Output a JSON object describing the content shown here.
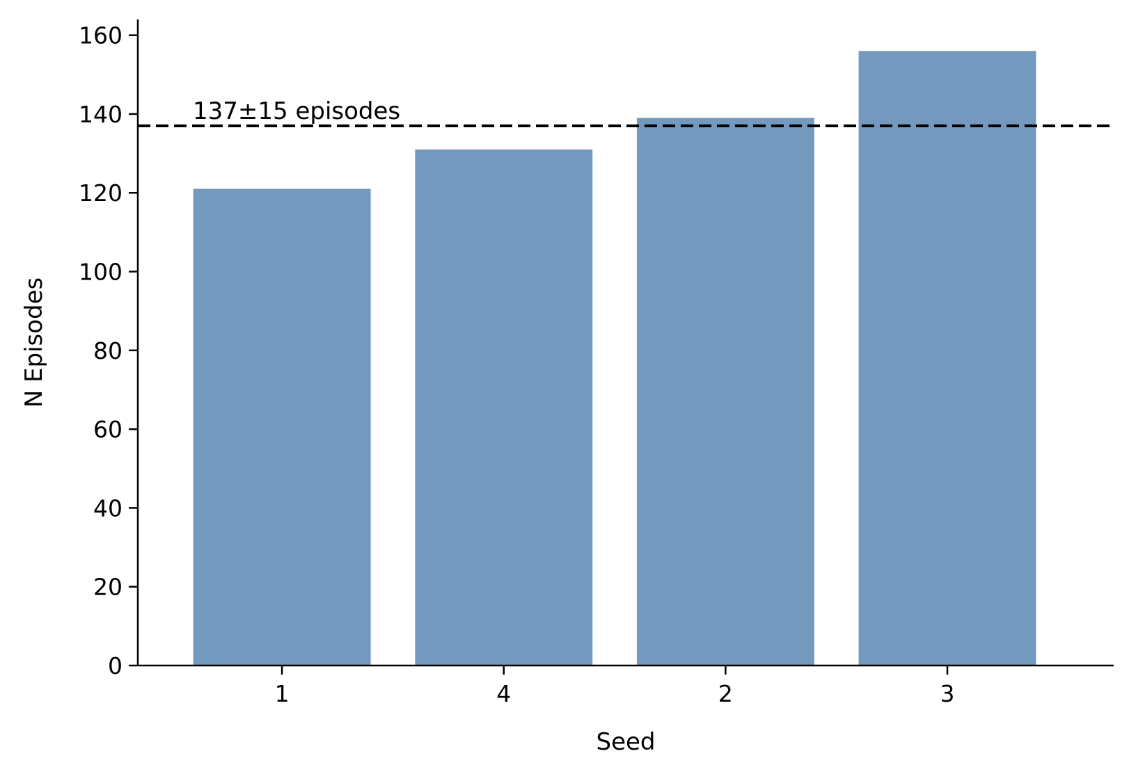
{
  "chart_data": {
    "type": "bar",
    "categories": [
      "1",
      "4",
      "2",
      "3"
    ],
    "values": [
      121,
      131,
      139,
      156
    ],
    "title": "",
    "xlabel": "Seed",
    "ylabel": "N Episodes",
    "ylim": [
      0,
      164
    ],
    "yticks": [
      0,
      20,
      40,
      60,
      80,
      100,
      120,
      140,
      160
    ],
    "grid": false,
    "bar_color": "#7399be",
    "reference_line": {
      "value": 137,
      "style": "dashed",
      "color": "#000000",
      "label": "137±15 episodes"
    }
  }
}
